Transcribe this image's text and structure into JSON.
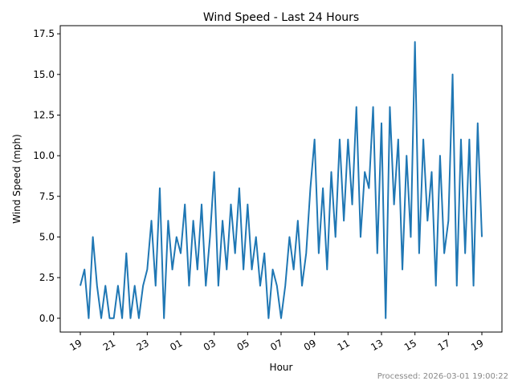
{
  "chart_data": {
    "type": "line",
    "title": "Wind Speed - Last 24 Hours",
    "x_label": "Hour",
    "y_label": "Wind Speed (mph)",
    "x": [
      0,
      0.25,
      0.5,
      0.75,
      1,
      1.25,
      1.5,
      1.75,
      2,
      2.25,
      2.5,
      2.75,
      3,
      3.25,
      3.5,
      3.75,
      4,
      4.25,
      4.5,
      4.75,
      5,
      5.25,
      5.5,
      5.75,
      6,
      6.25,
      6.5,
      6.75,
      7,
      7.25,
      7.5,
      7.75,
      8,
      8.25,
      8.5,
      8.75,
      9,
      9.25,
      9.5,
      9.75,
      10,
      10.25,
      10.5,
      10.75,
      11,
      11.25,
      11.5,
      11.75,
      12,
      12.25,
      12.5,
      12.75,
      13,
      13.25,
      13.5,
      13.75,
      14,
      14.25,
      14.5,
      14.75,
      15,
      15.25,
      15.5,
      15.75,
      16,
      16.25,
      16.5,
      16.75,
      17,
      17.25,
      17.5,
      17.75,
      18,
      18.25,
      18.5,
      18.75,
      19,
      19.25,
      19.5,
      19.75,
      20,
      20.25,
      20.5,
      20.75,
      21,
      21.25,
      21.5,
      21.75,
      22,
      22.25,
      22.5,
      22.75,
      23,
      23.25,
      23.5,
      23.75,
      24
    ],
    "values": [
      2,
      3,
      0,
      5,
      2,
      0,
      2,
      0,
      0,
      2,
      0,
      4,
      0,
      2,
      0,
      2,
      3,
      6,
      2,
      8,
      0,
      6,
      3,
      5,
      4,
      7,
      2,
      6,
      3,
      7,
      2,
      5,
      9,
      2,
      6,
      3,
      7,
      4,
      8,
      3,
      7,
      3,
      5,
      2,
      4,
      0,
      3,
      2,
      0,
      2,
      5,
      3,
      6,
      2,
      4,
      8,
      11,
      4,
      8,
      3,
      9,
      5,
      11,
      6,
      11,
      7,
      13,
      5,
      9,
      8,
      13,
      4,
      12,
      0,
      13,
      7,
      11,
      3,
      10,
      5,
      17,
      4,
      11,
      6,
      9,
      2,
      10,
      4,
      6,
      15,
      2,
      11,
      4,
      11,
      2,
      12,
      5
    ],
    "color": "#1f77b4",
    "xlim": [
      -1.2,
      25.2
    ],
    "xticks": [
      {
        "value": 0,
        "label": "19"
      },
      {
        "value": 2,
        "label": "21"
      },
      {
        "value": 4,
        "label": "23"
      },
      {
        "value": 6,
        "label": "01"
      },
      {
        "value": 8,
        "label": "03"
      },
      {
        "value": 10,
        "label": "05"
      },
      {
        "value": 12,
        "label": "07"
      },
      {
        "value": 14,
        "label": "09"
      },
      {
        "value": 16,
        "label": "11"
      },
      {
        "value": 18,
        "label": "13"
      },
      {
        "value": 20,
        "label": "15"
      },
      {
        "value": 22,
        "label": "17"
      },
      {
        "value": 24,
        "label": "19"
      }
    ],
    "ylim": [
      -0.85,
      18.0
    ],
    "yticks": [
      {
        "value": 0,
        "label": "0.0"
      },
      2.5,
      {
        "value": 5,
        "label": "5.0"
      },
      7.5,
      {
        "value": 10,
        "label": "10.0"
      },
      12.5,
      {
        "value": 15,
        "label": "15.0"
      },
      17.5
    ]
  },
  "footer": "Processed: 2026-03-01 19:00:22"
}
